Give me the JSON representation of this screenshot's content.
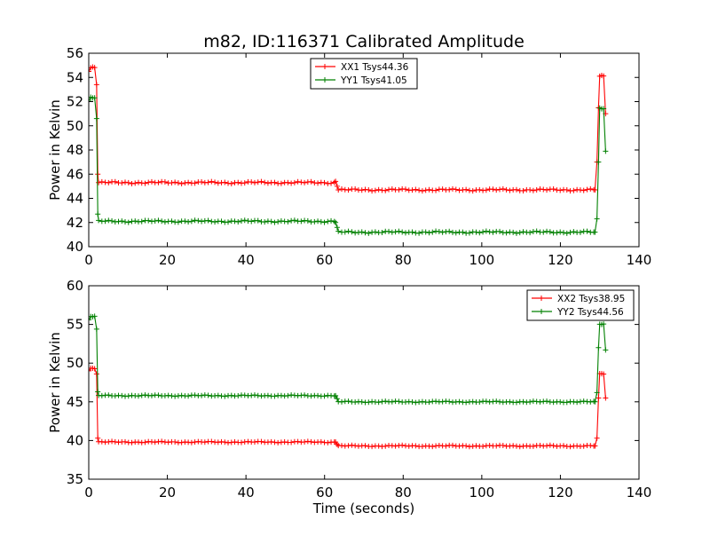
{
  "figure": {
    "title": "m82, ID:116371 Calibrated Amplitude"
  },
  "chart_data": [
    {
      "type": "line",
      "title": "m82, ID:116371 Calibrated Amplitude",
      "xlabel": "",
      "ylabel": "Power in Kelvin",
      "xlim": [
        0,
        140
      ],
      "ylim": [
        40,
        56
      ],
      "xticks": [
        0,
        20,
        40,
        60,
        80,
        100,
        120,
        140
      ],
      "yticks": [
        40,
        42,
        44,
        46,
        48,
        50,
        52,
        54,
        56
      ],
      "grid": false,
      "legend": "top-center",
      "series": [
        {
          "name": "XX1 Tsys44.36",
          "color": "#ff0000",
          "segments": [
            {
              "x0": 0.5,
              "x1": 1.5,
              "value": 54.8
            },
            {
              "x0": 2.5,
              "x1": 62.5,
              "value": 45.3
            },
            {
              "x0": 63.5,
              "x1": 128.5,
              "value": 44.7
            },
            {
              "x0": 130,
              "x1": 131,
              "value": 54.1
            }
          ],
          "points": [
            [
              0,
              54.5
            ],
            [
              2,
              53.4
            ],
            [
              2.3,
              46.0
            ],
            [
              62.8,
              45.4
            ],
            [
              63.2,
              45.0
            ],
            [
              128.8,
              44.7
            ],
            [
              129.3,
              47.0
            ],
            [
              129.7,
              51.5
            ],
            [
              131.5,
              51.0
            ]
          ]
        },
        {
          "name": "YY1 Tsys41.05",
          "color": "#008000",
          "segments": [
            {
              "x0": 0.5,
              "x1": 1.5,
              "value": 52.3
            },
            {
              "x0": 2.5,
              "x1": 62.5,
              "value": 42.1
            },
            {
              "x0": 63.5,
              "x1": 128.5,
              "value": 41.2
            },
            {
              "x0": 130,
              "x1": 131,
              "value": 51.4
            }
          ],
          "points": [
            [
              0,
              52.1
            ],
            [
              2,
              50.6
            ],
            [
              2.3,
              42.7
            ],
            [
              62.8,
              42.0
            ],
            [
              63.2,
              41.6
            ],
            [
              128.8,
              41.2
            ],
            [
              129.3,
              42.3
            ],
            [
              129.7,
              47.0
            ],
            [
              131.5,
              47.9
            ]
          ]
        }
      ]
    },
    {
      "type": "line",
      "title": "",
      "xlabel": "Time (seconds)",
      "ylabel": "Power in Kelvin",
      "xlim": [
        0,
        140
      ],
      "ylim": [
        35,
        60
      ],
      "xticks": [
        0,
        20,
        40,
        60,
        80,
        100,
        120,
        140
      ],
      "yticks": [
        35,
        40,
        45,
        50,
        55,
        60
      ],
      "grid": false,
      "legend": "top-right",
      "series": [
        {
          "name": "XX2 Tsys38.95",
          "color": "#ff0000",
          "segments": [
            {
              "x0": 0.5,
              "x1": 1.5,
              "value": 49.3
            },
            {
              "x0": 2.5,
              "x1": 62.5,
              "value": 39.8
            },
            {
              "x0": 63.5,
              "x1": 128.5,
              "value": 39.3
            },
            {
              "x0": 130,
              "x1": 131,
              "value": 48.6
            }
          ],
          "points": [
            [
              0,
              49.0
            ],
            [
              2,
              48.6
            ],
            [
              2.3,
              40.3
            ],
            [
              62.8,
              39.8
            ],
            [
              63.2,
              39.5
            ],
            [
              128.8,
              39.3
            ],
            [
              129.3,
              40.3
            ],
            [
              129.7,
              45.5
            ],
            [
              131.5,
              45.5
            ]
          ]
        },
        {
          "name": "YY2 Tsys44.56",
          "color": "#008000",
          "segments": [
            {
              "x0": 0.5,
              "x1": 1.5,
              "value": 56.0
            },
            {
              "x0": 2.5,
              "x1": 62.5,
              "value": 45.8
            },
            {
              "x0": 63.5,
              "x1": 128.5,
              "value": 45.0
            },
            {
              "x0": 130,
              "x1": 131,
              "value": 55.0
            }
          ],
          "points": [
            [
              0,
              55.6
            ],
            [
              2,
              54.4
            ],
            [
              2.3,
              46.3
            ],
            [
              62.8,
              45.8
            ],
            [
              63.2,
              45.4
            ],
            [
              128.8,
              45.0
            ],
            [
              129.3,
              46.2
            ],
            [
              129.7,
              52.0
            ],
            [
              131.5,
              51.7
            ]
          ]
        }
      ]
    }
  ]
}
